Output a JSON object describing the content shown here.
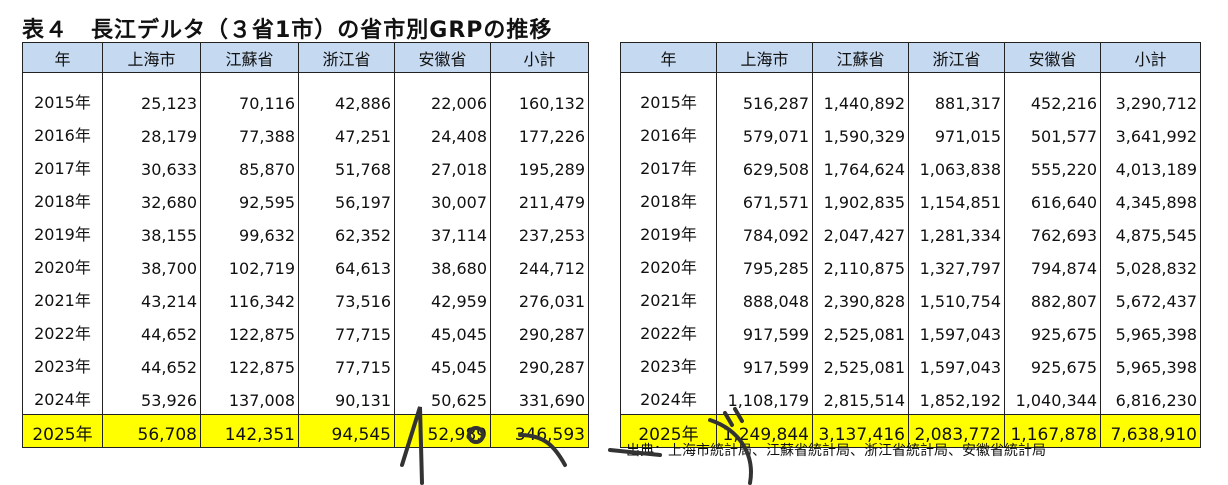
{
  "title": "表４　長江デルタ（３省1市）の省市別GRPの推移",
  "left_table": {
    "headers": [
      "年",
      "上海市",
      "江蘇省",
      "浙江省",
      "安徽省",
      "小計"
    ],
    "rows": [
      [
        "2015年",
        "25,123",
        "70,116",
        "42,886",
        "22,006",
        "160,132"
      ],
      [
        "2016年",
        "28,179",
        "77,388",
        "47,251",
        "24,408",
        "177,226"
      ],
      [
        "2017年",
        "30,633",
        "85,870",
        "51,768",
        "27,018",
        "195,289"
      ],
      [
        "2018年",
        "32,680",
        "92,595",
        "56,197",
        "30,007",
        "211,479"
      ],
      [
        "2019年",
        "38,155",
        "99,632",
        "62,352",
        "37,114",
        "237,253"
      ],
      [
        "2020年",
        "38,700",
        "102,719",
        "64,613",
        "38,680",
        "244,712"
      ],
      [
        "2021年",
        "43,214",
        "116,342",
        "73,516",
        "42,959",
        "276,031"
      ],
      [
        "2022年",
        "44,652",
        "122,875",
        "77,715",
        "45,045",
        "290,287"
      ],
      [
        "2023年",
        "44,652",
        "122,875",
        "77,715",
        "45,045",
        "290,287"
      ],
      [
        "2024年",
        "53,926",
        "137,008",
        "90,131",
        "50,625",
        "331,690"
      ],
      [
        "2025年",
        "56,708",
        "142,351",
        "94,545",
        "52,989",
        "346,593"
      ]
    ]
  },
  "right_table": {
    "headers": [
      "年",
      "上海市",
      "江蘇省",
      "浙江省",
      "安徽省",
      "小計"
    ],
    "rows": [
      [
        "2015年",
        "516,287",
        "1,440,892",
        "881,317",
        "452,216",
        "3,290,712"
      ],
      [
        "2016年",
        "579,071",
        "1,590,329",
        "971,015",
        "501,577",
        "3,641,992"
      ],
      [
        "2017年",
        "629,508",
        "1,764,624",
        "1,063,838",
        "555,220",
        "4,013,189"
      ],
      [
        "2018年",
        "671,571",
        "1,902,835",
        "1,154,851",
        "616,640",
        "4,345,898"
      ],
      [
        "2019年",
        "784,092",
        "2,047,427",
        "1,281,334",
        "762,693",
        "4,875,545"
      ],
      [
        "2020年",
        "795,285",
        "2,110,875",
        "1,327,797",
        "794,874",
        "5,028,832"
      ],
      [
        "2021年",
        "888,048",
        "2,390,828",
        "1,510,754",
        "882,807",
        "5,672,437"
      ],
      [
        "2022年",
        "917,599",
        "2,525,081",
        "1,597,043",
        "925,675",
        "5,965,398"
      ],
      [
        "2023年",
        "917,599",
        "2,525,081",
        "1,597,043",
        "925,675",
        "5,965,398"
      ],
      [
        "2024年",
        "1,108,179",
        "2,815,514",
        "1,852,192",
        "1,040,344",
        "6,816,230"
      ],
      [
        "2025年",
        "1,249,844",
        "3,137,416",
        "2,083,772",
        "1,167,878",
        "7,638,910"
      ]
    ]
  },
  "highlight_row_index": 10,
  "highlight_color": "#ffff00",
  "header_color": "#c5d9f1",
  "source": "出典：上海市統計局、江蘇省統計局、浙江省統計局、安徽省統計局"
}
